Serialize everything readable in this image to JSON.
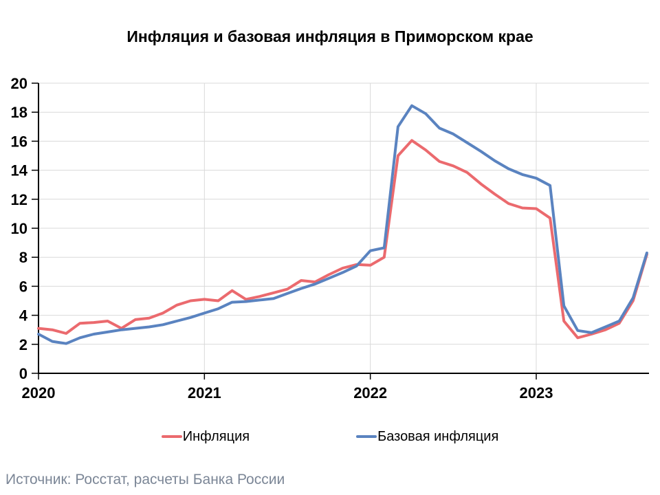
{
  "title": "Инфляция и базовая инфляция в Приморском крае",
  "source_note": "Источник: Росстат, расчеты Банка России",
  "colors": {
    "inflation_line": "#EB6A6E",
    "core_inflation_line": "#5A83C0",
    "grid": "#D9D9D9",
    "axis": "#000000",
    "text": "#000000",
    "source_text": "#7B8696",
    "background": "#FFFFFF"
  },
  "chart_data": {
    "type": "line",
    "title": "Инфляция и базовая инфляция в Приморском крае",
    "xlabel": "",
    "ylabel": "",
    "ylim": [
      0,
      20
    ],
    "ytick_step": 2,
    "yticks": [
      0,
      2,
      4,
      6,
      8,
      10,
      12,
      14,
      16,
      18,
      20
    ],
    "grid": true,
    "legend_position": "bottom",
    "x_tick_labels": [
      "2020",
      "2021",
      "2022",
      "2023"
    ],
    "x_monthly": [
      "2020-01",
      "2020-02",
      "2020-03",
      "2020-04",
      "2020-05",
      "2020-06",
      "2020-07",
      "2020-08",
      "2020-09",
      "2020-10",
      "2020-11",
      "2020-12",
      "2021-01",
      "2021-02",
      "2021-03",
      "2021-04",
      "2021-05",
      "2021-06",
      "2021-07",
      "2021-08",
      "2021-09",
      "2021-10",
      "2021-11",
      "2021-12",
      "2022-01",
      "2022-02",
      "2022-03",
      "2022-04",
      "2022-05",
      "2022-06",
      "2022-07",
      "2022-08",
      "2022-09",
      "2022-10",
      "2022-11",
      "2022-12",
      "2023-01",
      "2023-02",
      "2023-03",
      "2023-04",
      "2023-05",
      "2023-06",
      "2023-07",
      "2023-08",
      "2023-09"
    ],
    "series": [
      {
        "name": "Инфляция",
        "color": "#EB6A6E",
        "values": [
          3.1,
          3.0,
          2.75,
          3.45,
          3.5,
          3.6,
          3.1,
          3.7,
          3.8,
          4.15,
          4.7,
          5.0,
          5.1,
          5.0,
          5.7,
          5.1,
          5.3,
          5.55,
          5.8,
          6.4,
          6.3,
          6.8,
          7.25,
          7.5,
          7.45,
          8.0,
          15.0,
          16.05,
          15.4,
          14.6,
          14.3,
          13.85,
          13.05,
          12.35,
          11.7,
          11.4,
          11.35,
          10.7,
          3.6,
          2.45,
          2.7,
          3.0,
          3.45,
          5.0,
          8.2
        ]
      },
      {
        "name": "Базовая инфляция",
        "color": "#5A83C0",
        "values": [
          2.7,
          2.2,
          2.05,
          2.45,
          2.7,
          2.85,
          3.0,
          3.1,
          3.2,
          3.35,
          3.6,
          3.85,
          4.15,
          4.45,
          4.9,
          4.95,
          5.05,
          5.15,
          5.5,
          5.85,
          6.15,
          6.55,
          6.95,
          7.4,
          8.45,
          8.65,
          17.0,
          18.45,
          17.9,
          16.9,
          16.5,
          15.9,
          15.3,
          14.65,
          14.1,
          13.7,
          13.45,
          12.95,
          4.65,
          2.95,
          2.8,
          3.2,
          3.6,
          5.2,
          8.3
        ]
      }
    ]
  }
}
